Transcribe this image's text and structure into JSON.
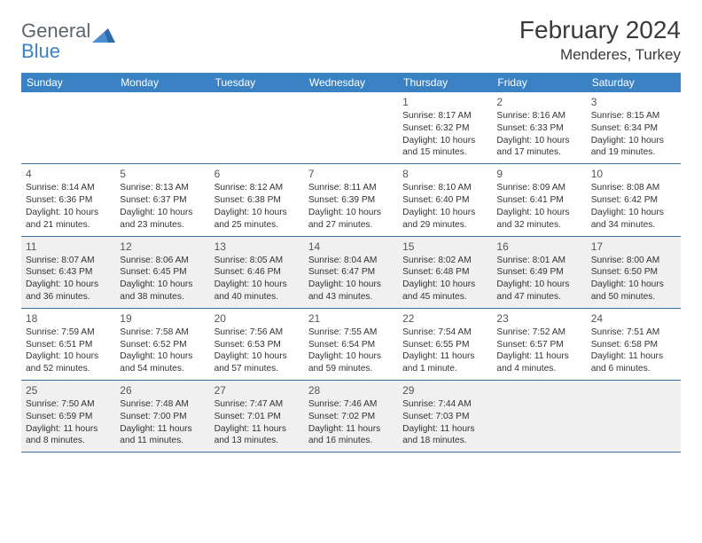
{
  "brand": {
    "part1": "General",
    "part2": "Blue"
  },
  "title": "February 2024",
  "location": "Menderes, Turkey",
  "colors": {
    "header_bg": "#3b82c4",
    "header_text": "#ffffff",
    "border": "#3b6fa0",
    "shade": "#f0f0f0",
    "logo_gray": "#5c6670",
    "logo_blue": "#3b82c4"
  },
  "dow": [
    "Sunday",
    "Monday",
    "Tuesday",
    "Wednesday",
    "Thursday",
    "Friday",
    "Saturday"
  ],
  "weeks": [
    [
      {
        "n": "",
        "sr": "",
        "ss": "",
        "dl": ""
      },
      {
        "n": "",
        "sr": "",
        "ss": "",
        "dl": ""
      },
      {
        "n": "",
        "sr": "",
        "ss": "",
        "dl": ""
      },
      {
        "n": "",
        "sr": "",
        "ss": "",
        "dl": ""
      },
      {
        "n": "1",
        "sr": "Sunrise: 8:17 AM",
        "ss": "Sunset: 6:32 PM",
        "dl": "Daylight: 10 hours and 15 minutes."
      },
      {
        "n": "2",
        "sr": "Sunrise: 8:16 AM",
        "ss": "Sunset: 6:33 PM",
        "dl": "Daylight: 10 hours and 17 minutes."
      },
      {
        "n": "3",
        "sr": "Sunrise: 8:15 AM",
        "ss": "Sunset: 6:34 PM",
        "dl": "Daylight: 10 hours and 19 minutes."
      }
    ],
    [
      {
        "n": "4",
        "sr": "Sunrise: 8:14 AM",
        "ss": "Sunset: 6:36 PM",
        "dl": "Daylight: 10 hours and 21 minutes."
      },
      {
        "n": "5",
        "sr": "Sunrise: 8:13 AM",
        "ss": "Sunset: 6:37 PM",
        "dl": "Daylight: 10 hours and 23 minutes."
      },
      {
        "n": "6",
        "sr": "Sunrise: 8:12 AM",
        "ss": "Sunset: 6:38 PM",
        "dl": "Daylight: 10 hours and 25 minutes."
      },
      {
        "n": "7",
        "sr": "Sunrise: 8:11 AM",
        "ss": "Sunset: 6:39 PM",
        "dl": "Daylight: 10 hours and 27 minutes."
      },
      {
        "n": "8",
        "sr": "Sunrise: 8:10 AM",
        "ss": "Sunset: 6:40 PM",
        "dl": "Daylight: 10 hours and 29 minutes."
      },
      {
        "n": "9",
        "sr": "Sunrise: 8:09 AM",
        "ss": "Sunset: 6:41 PM",
        "dl": "Daylight: 10 hours and 32 minutes."
      },
      {
        "n": "10",
        "sr": "Sunrise: 8:08 AM",
        "ss": "Sunset: 6:42 PM",
        "dl": "Daylight: 10 hours and 34 minutes."
      }
    ],
    [
      {
        "n": "11",
        "sr": "Sunrise: 8:07 AM",
        "ss": "Sunset: 6:43 PM",
        "dl": "Daylight: 10 hours and 36 minutes."
      },
      {
        "n": "12",
        "sr": "Sunrise: 8:06 AM",
        "ss": "Sunset: 6:45 PM",
        "dl": "Daylight: 10 hours and 38 minutes."
      },
      {
        "n": "13",
        "sr": "Sunrise: 8:05 AM",
        "ss": "Sunset: 6:46 PM",
        "dl": "Daylight: 10 hours and 40 minutes."
      },
      {
        "n": "14",
        "sr": "Sunrise: 8:04 AM",
        "ss": "Sunset: 6:47 PM",
        "dl": "Daylight: 10 hours and 43 minutes."
      },
      {
        "n": "15",
        "sr": "Sunrise: 8:02 AM",
        "ss": "Sunset: 6:48 PM",
        "dl": "Daylight: 10 hours and 45 minutes."
      },
      {
        "n": "16",
        "sr": "Sunrise: 8:01 AM",
        "ss": "Sunset: 6:49 PM",
        "dl": "Daylight: 10 hours and 47 minutes."
      },
      {
        "n": "17",
        "sr": "Sunrise: 8:00 AM",
        "ss": "Sunset: 6:50 PM",
        "dl": "Daylight: 10 hours and 50 minutes."
      }
    ],
    [
      {
        "n": "18",
        "sr": "Sunrise: 7:59 AM",
        "ss": "Sunset: 6:51 PM",
        "dl": "Daylight: 10 hours and 52 minutes."
      },
      {
        "n": "19",
        "sr": "Sunrise: 7:58 AM",
        "ss": "Sunset: 6:52 PM",
        "dl": "Daylight: 10 hours and 54 minutes."
      },
      {
        "n": "20",
        "sr": "Sunrise: 7:56 AM",
        "ss": "Sunset: 6:53 PM",
        "dl": "Daylight: 10 hours and 57 minutes."
      },
      {
        "n": "21",
        "sr": "Sunrise: 7:55 AM",
        "ss": "Sunset: 6:54 PM",
        "dl": "Daylight: 10 hours and 59 minutes."
      },
      {
        "n": "22",
        "sr": "Sunrise: 7:54 AM",
        "ss": "Sunset: 6:55 PM",
        "dl": "Daylight: 11 hours and 1 minute."
      },
      {
        "n": "23",
        "sr": "Sunrise: 7:52 AM",
        "ss": "Sunset: 6:57 PM",
        "dl": "Daylight: 11 hours and 4 minutes."
      },
      {
        "n": "24",
        "sr": "Sunrise: 7:51 AM",
        "ss": "Sunset: 6:58 PM",
        "dl": "Daylight: 11 hours and 6 minutes."
      }
    ],
    [
      {
        "n": "25",
        "sr": "Sunrise: 7:50 AM",
        "ss": "Sunset: 6:59 PM",
        "dl": "Daylight: 11 hours and 8 minutes."
      },
      {
        "n": "26",
        "sr": "Sunrise: 7:48 AM",
        "ss": "Sunset: 7:00 PM",
        "dl": "Daylight: 11 hours and 11 minutes."
      },
      {
        "n": "27",
        "sr": "Sunrise: 7:47 AM",
        "ss": "Sunset: 7:01 PM",
        "dl": "Daylight: 11 hours and 13 minutes."
      },
      {
        "n": "28",
        "sr": "Sunrise: 7:46 AM",
        "ss": "Sunset: 7:02 PM",
        "dl": "Daylight: 11 hours and 16 minutes."
      },
      {
        "n": "29",
        "sr": "Sunrise: 7:44 AM",
        "ss": "Sunset: 7:03 PM",
        "dl": "Daylight: 11 hours and 18 minutes."
      },
      {
        "n": "",
        "sr": "",
        "ss": "",
        "dl": ""
      },
      {
        "n": "",
        "sr": "",
        "ss": "",
        "dl": ""
      }
    ]
  ],
  "shaded_rows": [
    2,
    4
  ]
}
